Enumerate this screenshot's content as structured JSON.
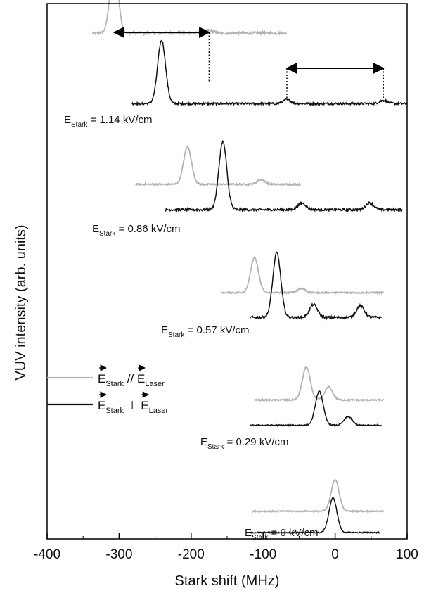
{
  "chart_data": {
    "type": "line",
    "title": "",
    "xlabel": "Stark shift (MHz)",
    "ylabel": "VUV intensity (arb. units)",
    "xlim": [
      -400,
      100
    ],
    "x_ticks": [
      -400,
      -300,
      -200,
      -100,
      0,
      100
    ],
    "y_ticks": [],
    "grid": false,
    "legend_position": "middle-left",
    "colors": {
      "parallel": "#b4b4b4",
      "perpendicular": "#111111",
      "axis": "#000000"
    },
    "legend": [
      {
        "key": "parallel",
        "main": "E",
        "sub1": "Stark",
        "op": " // ",
        "main2": "E",
        "sub2": "Laser",
        "color": "#b4b4b4"
      },
      {
        "key": "perpendicular",
        "main": "E",
        "sub1": "Stark",
        "op": " ⊥ ",
        "main2": "E",
        "sub2": "Laser",
        "color": "#111111"
      }
    ],
    "field_labels": [
      {
        "prefix": "E",
        "sub": "Stark",
        "text": " = 1.14 kV/cm"
      },
      {
        "prefix": "E",
        "sub": "Stark",
        "text": " = 0.86 kV/cm"
      },
      {
        "prefix": "E",
        "sub": "Stark",
        "text": " = 0.57 kV/cm"
      },
      {
        "prefix": "E",
        "sub": "Stark",
        "text": " = 0.29 kV/cm"
      },
      {
        "prefix": "E",
        "sub": "Stark",
        "text": " = 0 kV/cm"
      }
    ],
    "panels": [
      {
        "field_kV_cm": 1.14,
        "parallel": {
          "x_range": [
            -337,
            -67
          ],
          "baseline": 0.76,
          "peaks": [
            [
              -307,
              1.0
            ],
            [
              -175,
              0.038
            ]
          ]
        },
        "perpendicular": {
          "x_range": [
            -282,
            100
          ],
          "baseline": 0.03,
          "peaks": [
            [
              -241,
              1.0
            ],
            [
              -67,
              0.06
            ],
            [
              67,
              0.05
            ]
          ]
        },
        "splitting_arrows": [
          [
            -307,
            -175
          ],
          [
            -67,
            67
          ]
        ]
      },
      {
        "field_kV_cm": 0.86,
        "parallel": {
          "x_range": [
            -277,
            -48
          ],
          "baseline": 0.2,
          "peaks": [
            [
              -205,
              0.82
            ],
            [
              -103,
              0.1
            ]
          ]
        },
        "perpendicular": {
          "x_range": [
            -236,
            93
          ],
          "baseline": 0.03,
          "peaks": [
            [
              -156,
              1.0
            ],
            [
              -46,
              0.1
            ],
            [
              48,
              0.1
            ]
          ]
        }
      },
      {
        "field_kV_cm": 0.57,
        "parallel": {
          "x_range": [
            -158,
            68
          ],
          "baseline": 0.2,
          "peaks": [
            [
              -112,
              0.82
            ],
            [
              -47,
              0.1
            ]
          ]
        },
        "perpendicular": {
          "x_range": [
            -118,
            65
          ],
          "baseline": 0.03,
          "peaks": [
            [
              -81,
              1.0
            ],
            [
              -30,
              0.2
            ],
            [
              35,
              0.18
            ]
          ]
        }
      },
      {
        "field_kV_cm": 0.29,
        "parallel": {
          "x_range": [
            -112,
            68
          ],
          "baseline": 0.2,
          "peaks": [
            [
              -40,
              0.82
            ],
            [
              -9,
              0.32
            ]
          ]
        },
        "perpendicular": {
          "x_range": [
            -118,
            65
          ],
          "baseline": 0.03,
          "peaks": [
            [
              -22,
              1.0
            ],
            [
              18,
              0.26
            ]
          ]
        }
      },
      {
        "field_kV_cm": 0,
        "parallel": {
          "x_range": [
            -115,
            68
          ],
          "baseline": 0.05,
          "peaks": [
            [
              0,
              1.0
            ]
          ]
        },
        "perpendicular": {
          "x_range": [
            -118,
            62
          ],
          "baseline": 0.02,
          "peaks": [
            [
              -3,
              1.0
            ]
          ]
        }
      }
    ]
  }
}
